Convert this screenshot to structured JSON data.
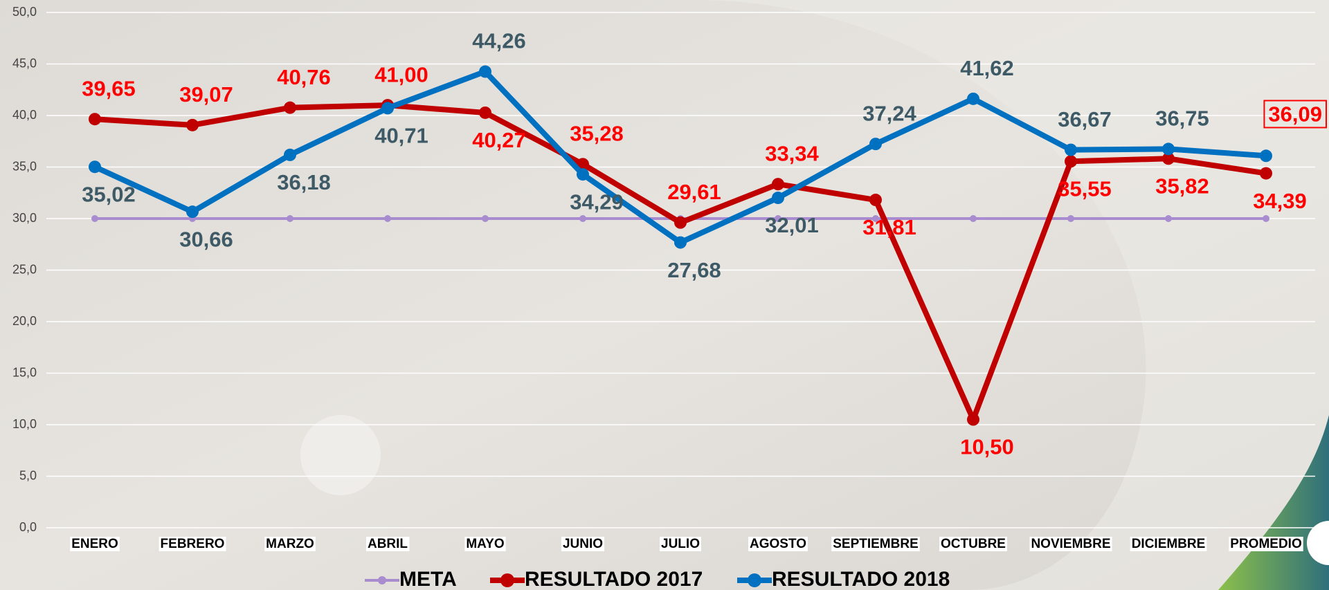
{
  "chart_data": {
    "type": "line",
    "categories": [
      "ENERO",
      "FEBRERO",
      "MARZO",
      "ABRIL",
      "MAYO",
      "JUNIO",
      "JULIO",
      "AGOSTO",
      "SEPTIEMBRE",
      "OCTUBRE",
      "NOVIEMBRE",
      "DICIEMBRE",
      "PROMEDIO"
    ],
    "series": [
      {
        "name": "META",
        "color": "#a98bd0",
        "values": [
          30,
          30,
          30,
          30,
          30,
          30,
          30,
          30,
          30,
          30,
          30,
          30,
          30
        ]
      },
      {
        "name": "RESULTADO 2017",
        "color": "#c00000",
        "values": [
          39.65,
          39.07,
          40.76,
          41.0,
          40.27,
          35.28,
          29.61,
          33.34,
          31.81,
          10.5,
          35.55,
          35.82,
          34.39
        ],
        "value_labels": [
          "39,65",
          "39,07",
          "40,76",
          "41,00",
          "40,27",
          "35,28",
          "29,61",
          "33,34",
          "31,81",
          "10,50",
          "35,55",
          "35,82",
          "34,39"
        ]
      },
      {
        "name": "RESULTADO 2018",
        "color": "#0070c0",
        "values": [
          35.02,
          30.66,
          36.18,
          40.71,
          44.26,
          34.29,
          27.68,
          32.01,
          37.24,
          41.62,
          36.67,
          36.75,
          36.09
        ],
        "value_labels": [
          "35,02",
          "30,66",
          "36,18",
          "40,71",
          "44,26",
          "34,29",
          "27,68",
          "32,01",
          "37,24",
          "41,62",
          "36,67",
          "36,75",
          "36,09"
        ]
      }
    ],
    "ylim": [
      0,
      50
    ],
    "yticks": [
      {
        "value": 0,
        "label": "0,0"
      },
      {
        "value": 5,
        "label": "5,0"
      },
      {
        "value": 10,
        "label": "10,0"
      },
      {
        "value": 15,
        "label": "15,0"
      },
      {
        "value": 20,
        "label": "20,0"
      },
      {
        "value": 25,
        "label": "25,0"
      },
      {
        "value": 30,
        "label": "30,0"
      },
      {
        "value": 35,
        "label": "35,0"
      },
      {
        "value": 40,
        "label": "40,0"
      },
      {
        "value": 45,
        "label": "45,0"
      },
      {
        "value": 50,
        "label": "50,0"
      }
    ],
    "grid": true,
    "legend": "bottom"
  }
}
